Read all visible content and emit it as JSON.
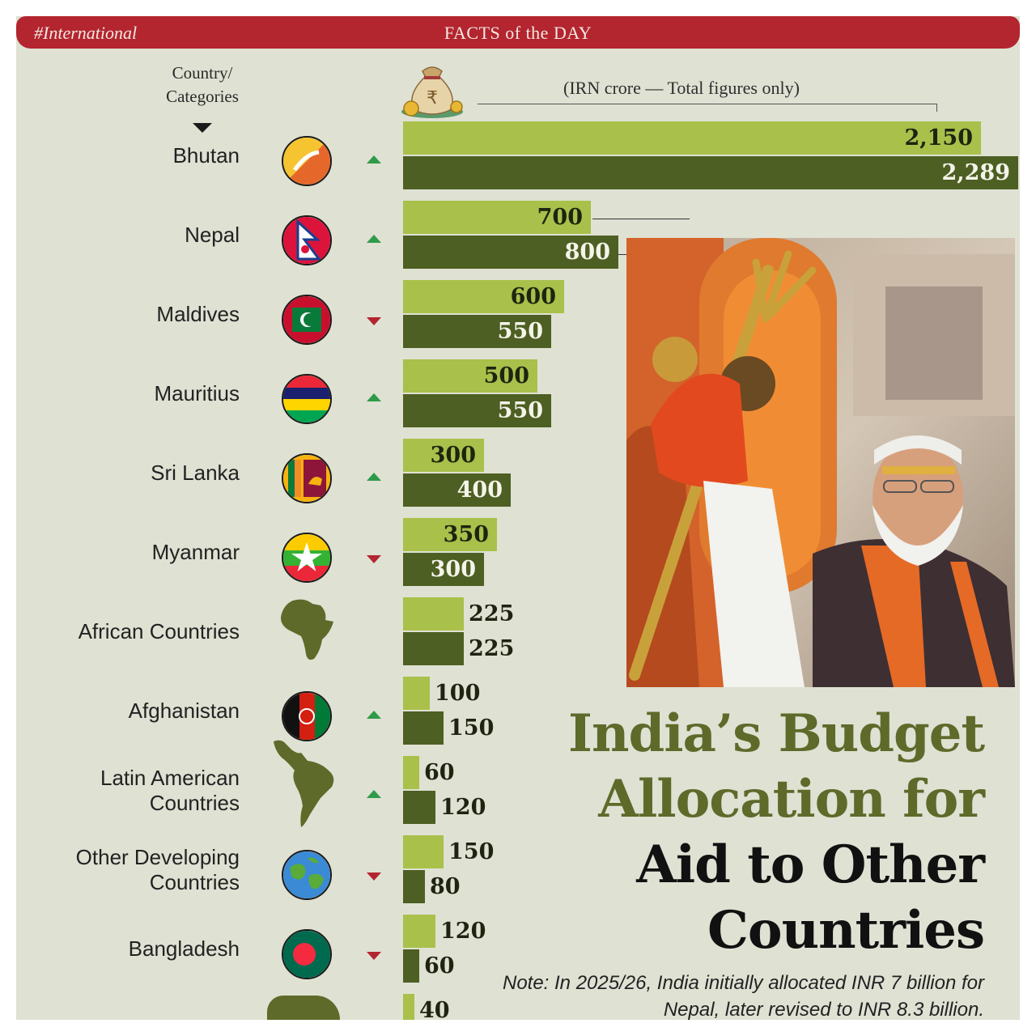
{
  "banner": {
    "tag": "#International",
    "title": "FACTS of the DAY"
  },
  "header": {
    "category_label": "Country/ Categories",
    "unit_label": "(IRN crore — Total figures only)"
  },
  "headline": {
    "line1": "India’s Budget",
    "line2": "Allocation for",
    "line3": "Aid to Other",
    "line4": "Countries"
  },
  "note": "Note: In 2025/26, India initially allocated INR 7 billion for Nepal, later revised to INR 8.3 billion.",
  "colors": {
    "banner": "#b3252f",
    "bar_light": "#a9c04a",
    "bar_dark": "#4d5f22",
    "up": "#2f9b4a",
    "down": "#b3252f",
    "headline_green": "#5d6a2a"
  },
  "chart_data": {
    "type": "bar",
    "orientation": "horizontal",
    "unit": "IRN crore",
    "categories": [
      "Bhutan",
      "Nepal",
      "Maldives",
      "Mauritius",
      "Sri Lanka",
      "Myanmar",
      "African Countries",
      "Afghanistan",
      "Latin American Countries",
      "Other Developing Countries",
      "Bangladesh"
    ],
    "series": [
      {
        "values": [
          2150,
          700,
          600,
          500,
          300,
          350,
          225,
          100,
          60,
          150,
          120
        ]
      },
      {
        "values": [
          2289,
          800,
          550,
          550,
          400,
          300,
          225,
          150,
          120,
          80,
          60
        ]
      }
    ],
    "value_labels": [
      [
        "2,150",
        "700",
        "600",
        "500",
        "300",
        "350",
        "225",
        "100",
        "60",
        "150",
        "120"
      ],
      [
        "2,289",
        "800",
        "550",
        "550",
        "400",
        "300",
        "225",
        "150",
        "120",
        "80",
        "60"
      ]
    ],
    "trend": [
      "up",
      "up",
      "down",
      "up",
      "up",
      "down",
      "equal",
      "up",
      "up",
      "down",
      "down"
    ],
    "trend_glyph_equal": "=",
    "partial_last_row": {
      "value_label": "40"
    },
    "row_icons": [
      "bhutan-flag-icon",
      "nepal-flag-icon",
      "maldives-flag-icon",
      "mauritius-flag-icon",
      "sri-lanka-flag-icon",
      "myanmar-flag-icon",
      "africa-map-icon",
      "afghanistan-flag-icon",
      "latin-america-map-icon",
      "globe-icon",
      "bangladesh-flag-icon"
    ],
    "legend": "none",
    "grid": false
  }
}
